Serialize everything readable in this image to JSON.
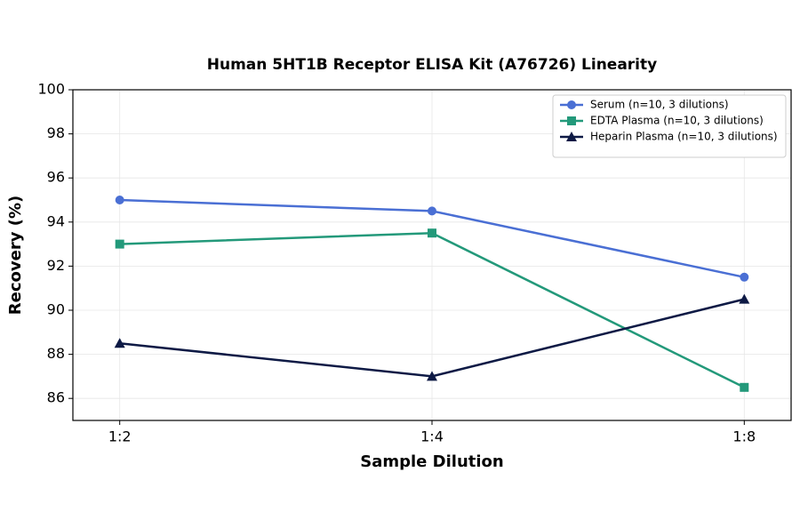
{
  "chart_data": {
    "type": "line",
    "title": "Human 5HT1B Receptor ELISA Kit (A76726) Linearity",
    "x_label": "Sample Dilution",
    "y_label": "Recovery (%)",
    "categories": [
      "1:2",
      "1:4",
      "1:8"
    ],
    "series": [
      {
        "name": "Serum (n=10, 3 dilutions)",
        "color": "#4a6fd4",
        "marker": "circle",
        "values": [
          95,
          94.5,
          91.5
        ]
      },
      {
        "name": "EDTA Plasma (n=10, 3 dilutions)",
        "color": "#23997a",
        "marker": "square",
        "values": [
          93,
          93.5,
          86.5
        ]
      },
      {
        "name": "Heparin Plasma (n=10, 3 dilutions)",
        "color": "#0e1a45",
        "marker": "triangle",
        "values": [
          88.5,
          87,
          90.5
        ]
      }
    ],
    "ylim": [
      85,
      100
    ],
    "yticks": [
      86,
      88,
      90,
      92,
      94,
      96,
      98,
      100
    ],
    "grid": true,
    "legend": "upper right"
  }
}
